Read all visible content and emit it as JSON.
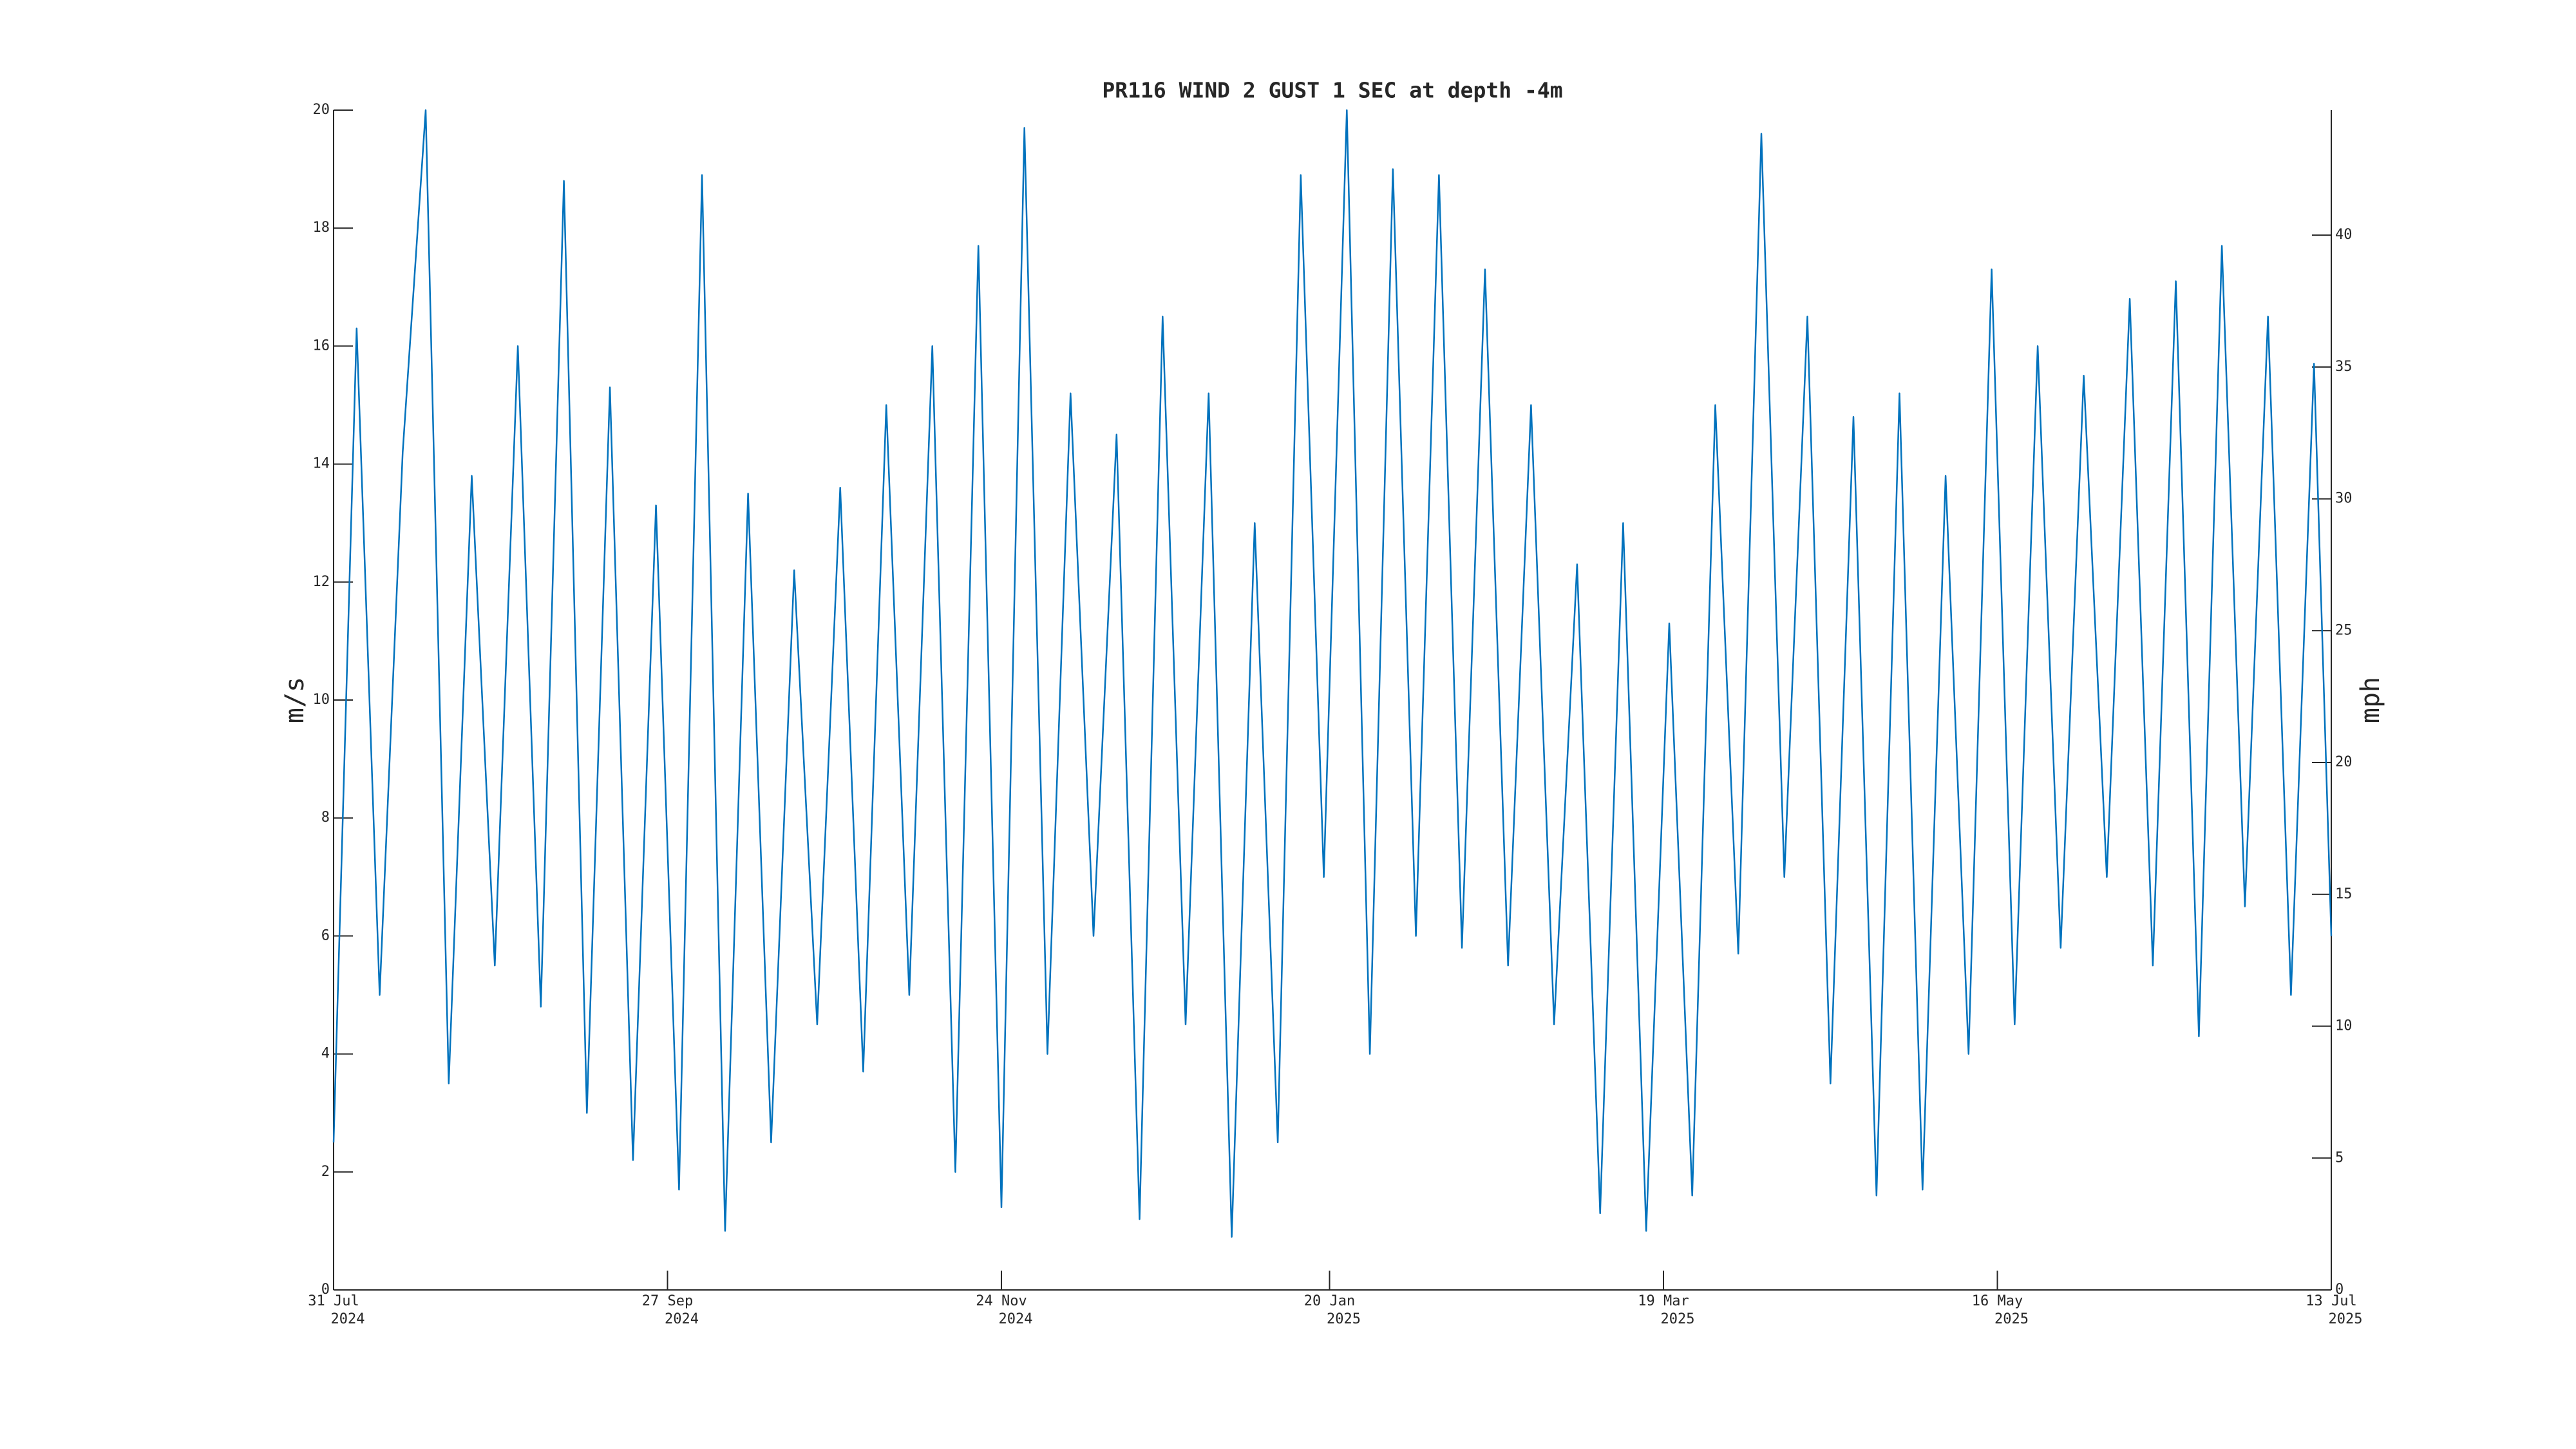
{
  "chart_data": {
    "type": "line",
    "title": "PR116 WIND 2 GUST 1 SEC at depth -4m",
    "ylabel": "m/s",
    "y2label": "mph",
    "color": "#0072bd",
    "grid": false,
    "xlim": [
      "2024-07-31",
      "2025-07-13"
    ],
    "xticks": [
      {
        "value": "2024-07-31",
        "label": [
          "31 Jul",
          "2024"
        ]
      },
      {
        "value": "2024-09-27",
        "label": [
          "27 Sep",
          "2024"
        ]
      },
      {
        "value": "2024-11-24",
        "label": [
          "24 Nov",
          "2024"
        ]
      },
      {
        "value": "2025-01-20",
        "label": [
          "20 Jan",
          "2025"
        ]
      },
      {
        "value": "2025-03-19",
        "label": [
          "19 Mar",
          "2025"
        ]
      },
      {
        "value": "2025-05-16",
        "label": [
          "16 May",
          "2025"
        ]
      },
      {
        "value": "2025-07-13",
        "label": [
          "13 Jul",
          "2025"
        ]
      }
    ],
    "ylim": [
      0,
      20
    ],
    "yticks": [
      0,
      2,
      4,
      6,
      8,
      10,
      12,
      14,
      16,
      18,
      20
    ],
    "y2lim": [
      0,
      44.74
    ],
    "y2ticks": [
      0,
      5,
      10,
      15,
      20,
      25,
      30,
      35,
      40
    ],
    "x": [
      "2024-07-31",
      "2024-08-04",
      "2024-08-08",
      "2024-08-12",
      "2024-08-16",
      "2024-08-20",
      "2024-08-24",
      "2024-08-28",
      "2024-09-01",
      "2024-09-05",
      "2024-09-09",
      "2024-09-13",
      "2024-09-17",
      "2024-09-21",
      "2024-09-25",
      "2024-09-29",
      "2024-10-03",
      "2024-10-07",
      "2024-10-11",
      "2024-10-15",
      "2024-10-19",
      "2024-10-23",
      "2024-10-27",
      "2024-10-31",
      "2024-11-04",
      "2024-11-08",
      "2024-11-12",
      "2024-11-16",
      "2024-11-20",
      "2024-11-24",
      "2024-11-28",
      "2024-12-02",
      "2024-12-06",
      "2024-12-10",
      "2024-12-14",
      "2024-12-18",
      "2024-12-22",
      "2024-12-26",
      "2024-12-30",
      "2025-01-03",
      "2025-01-07",
      "2025-01-11",
      "2025-01-15",
      "2025-01-19",
      "2025-01-23",
      "2025-01-27",
      "2025-01-31",
      "2025-02-04",
      "2025-02-08",
      "2025-02-12",
      "2025-02-16",
      "2025-02-20",
      "2025-02-24",
      "2025-02-28",
      "2025-03-04",
      "2025-03-08",
      "2025-03-12",
      "2025-03-16",
      "2025-03-20",
      "2025-03-24",
      "2025-03-28",
      "2025-04-01",
      "2025-04-05",
      "2025-04-09",
      "2025-04-13",
      "2025-04-17",
      "2025-04-21",
      "2025-04-25",
      "2025-04-29",
      "2025-05-03",
      "2025-05-07",
      "2025-05-11",
      "2025-05-15",
      "2025-05-19",
      "2025-05-23",
      "2025-05-27",
      "2025-05-31",
      "2025-06-04",
      "2025-06-08",
      "2025-06-12",
      "2025-06-16",
      "2025-06-20",
      "2025-06-24",
      "2025-06-28",
      "2025-07-02",
      "2025-07-06",
      "2025-07-10",
      "2025-07-13"
    ],
    "values": [
      2.5,
      16.3,
      5.0,
      14.2,
      20.0,
      3.5,
      13.8,
      5.5,
      16.0,
      4.8,
      18.8,
      3.0,
      15.3,
      2.2,
      13.3,
      1.7,
      18.9,
      1.0,
      13.5,
      2.5,
      12.2,
      4.5,
      13.6,
      3.7,
      15.0,
      5.0,
      16.0,
      2.0,
      17.7,
      1.4,
      19.7,
      4.0,
      15.2,
      6.0,
      14.5,
      1.2,
      16.5,
      4.5,
      15.2,
      0.9,
      13.0,
      2.5,
      18.9,
      7.0,
      20.0,
      4.0,
      19.0,
      6.0,
      18.9,
      5.8,
      17.3,
      5.5,
      15.0,
      4.5,
      12.3,
      1.3,
      13.0,
      1.0,
      11.3,
      1.6,
      15.0,
      5.7,
      19.6,
      7.0,
      16.5,
      3.5,
      14.8,
      1.6,
      15.2,
      1.7,
      13.8,
      4.0,
      17.3,
      4.5,
      16.0,
      5.8,
      15.5,
      7.0,
      16.8,
      5.5,
      17.1,
      4.3,
      17.7,
      6.5,
      16.5,
      5.0,
      15.7,
      6.0
    ]
  }
}
